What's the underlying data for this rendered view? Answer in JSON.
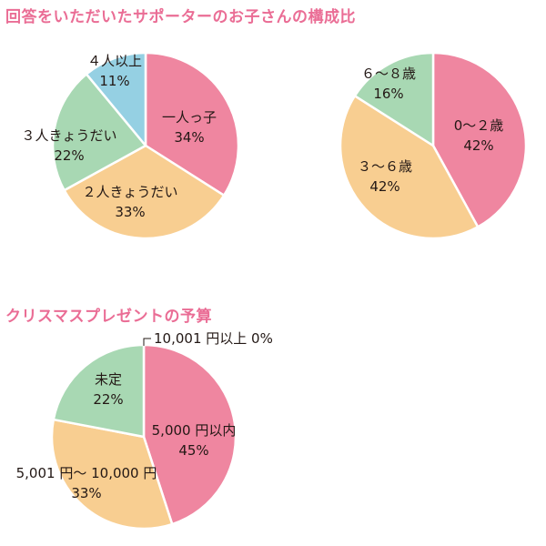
{
  "headings": {
    "supporters_children": "回答をいただいたサポーターのお子さんの構成比",
    "christmas_budget": "クリスマスプレゼントの予算"
  },
  "colors": {
    "heading": "#ea6d95",
    "pink": "#ef86a0",
    "orange": "#f8ce91",
    "green": "#a8d8b3",
    "blue": "#95d0e3",
    "label": "#231815"
  },
  "chart_data": [
    {
      "type": "pie",
      "title": "",
      "series": [
        {
          "label": "一人っ子",
          "value": 34,
          "display": "34%",
          "color": "#ef86a0"
        },
        {
          "label": "２人きょうだい",
          "value": 33,
          "display": "33%",
          "color": "#f8ce91"
        },
        {
          "label": "３人きょうだい",
          "value": 22,
          "display": "22%",
          "color": "#a8d8b3"
        },
        {
          "label": "４人以上",
          "value": 11,
          "display": "11%",
          "color": "#95d0e3"
        }
      ]
    },
    {
      "type": "pie",
      "title": "",
      "series": [
        {
          "label": "0～２歳",
          "value": 42,
          "display": "42%",
          "color": "#ef86a0"
        },
        {
          "label": "３～６歳",
          "value": 42,
          "display": "42%",
          "color": "#f8ce91"
        },
        {
          "label": "６～８歳",
          "value": 16,
          "display": "16%",
          "color": "#a8d8b3"
        }
      ]
    },
    {
      "type": "pie",
      "title": "",
      "series": [
        {
          "label": "10,001 円以上 0%",
          "value": 0,
          "display": "",
          "color": "#95d0e3"
        },
        {
          "label": "5,000 円以内",
          "value": 45,
          "display": "45%",
          "color": "#ef86a0"
        },
        {
          "label": "5,001 円～ 10,000 円",
          "value": 33,
          "display": "33%",
          "color": "#f8ce91"
        },
        {
          "label": "未定",
          "value": 22,
          "display": "22%",
          "color": "#a8d8b3"
        }
      ]
    }
  ]
}
